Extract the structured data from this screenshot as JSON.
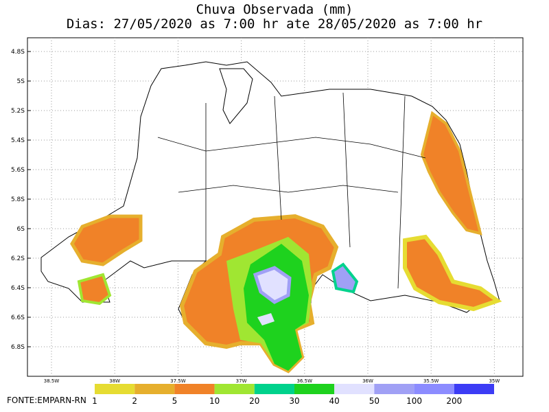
{
  "header": {
    "title": "Chuva Observada (mm)",
    "subtitle": "Dias: 27/05/2020 as 7:00 hr ate 28/05/2020 as 7:00 hr"
  },
  "axes": {
    "y_labels": [
      "4.8S",
      "5S",
      "5.2S",
      "5.4S",
      "5.6S",
      "5.8S",
      "6S",
      "6.2S",
      "6.4S",
      "6.6S",
      "6.8S"
    ],
    "x_labels": [
      "38.5W",
      "38W",
      "37.5W",
      "37W",
      "36.5W",
      "36W",
      "35.5W",
      "35W"
    ]
  },
  "legend": {
    "labels": [
      "1",
      "2",
      "5",
      "10",
      "20",
      "30",
      "40",
      "50",
      "100",
      "200"
    ],
    "colors": [
      "#e6dc32",
      "#e6af2d",
      "#f08228",
      "#a0e632",
      "#00d28c",
      "#1ed21e",
      "#e1e1ff",
      "#a0a0f5",
      "#8c8cff",
      "#3c3cf5"
    ]
  },
  "footer": {
    "source": "FONTE:EMPARN-RN"
  }
}
